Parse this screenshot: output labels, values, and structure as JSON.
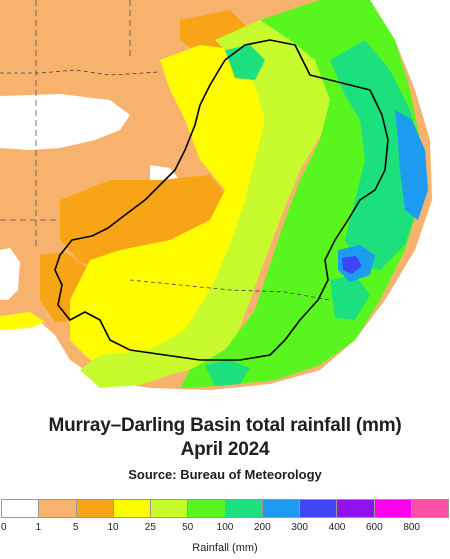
{
  "map": {
    "region": "Murray–Darling Basin",
    "colors": {
      "outside_bg": "#ffffff",
      "class_0_1": "#ffffff",
      "class_1_5": "#f7b26e",
      "class_5_10": "#f7a516",
      "class_10_25": "#fffc00",
      "class_25_50": "#c7fb2d",
      "class_50_100": "#59f51e",
      "class_100_200": "#1be07d",
      "class_200_300": "#1c9bf1",
      "class_300_400": "#3f45f4",
      "boundary": "#000000"
    }
  },
  "title": {
    "line1": "Murray–Darling Basin total rainfall (mm)",
    "line2": "April 2024"
  },
  "source": "Source: Bureau of Meteorology",
  "legend": {
    "title": "Rainfall (mm)",
    "ticks": [
      "0",
      "1",
      "5",
      "10",
      "25",
      "50",
      "100",
      "200",
      "300",
      "400",
      "600",
      "800"
    ],
    "swatches": [
      {
        "color": "#ffffff"
      },
      {
        "color": "#f7b26e"
      },
      {
        "color": "#f7a516"
      },
      {
        "color": "#fffc00"
      },
      {
        "color": "#c7fb2d"
      },
      {
        "color": "#59f51e"
      },
      {
        "color": "#1be07d"
      },
      {
        "color": "#1c9bf1"
      },
      {
        "color": "#3f45f4"
      },
      {
        "color": "#9012f0"
      },
      {
        "color": "#ff00f0"
      },
      {
        "color": "#ff50a8"
      }
    ]
  }
}
